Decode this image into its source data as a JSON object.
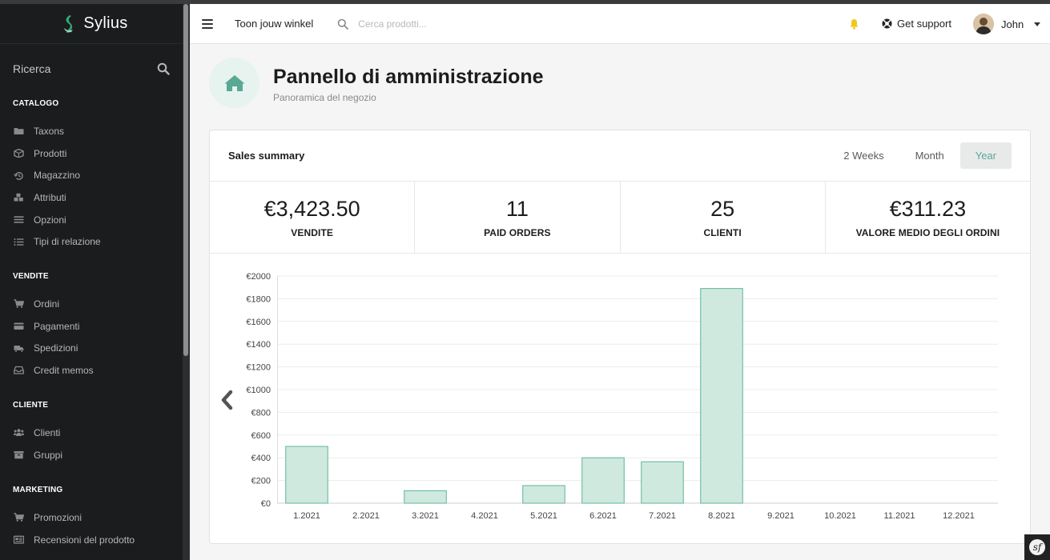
{
  "sidebar": {
    "brand": "Sylius",
    "search_label": "Ricerca",
    "sections": [
      {
        "title": "CATALOGO",
        "items": [
          {
            "label": "Taxons",
            "icon": "folder-icon"
          },
          {
            "label": "Prodotti",
            "icon": "cube-icon"
          },
          {
            "label": "Magazzino",
            "icon": "history-icon"
          },
          {
            "label": "Attributi",
            "icon": "cubes-icon"
          },
          {
            "label": "Opzioni",
            "icon": "list-icon"
          },
          {
            "label": "Tipi di relazione",
            "icon": "list-ul-icon"
          }
        ]
      },
      {
        "title": "VENDITE",
        "items": [
          {
            "label": "Ordini",
            "icon": "cart-icon"
          },
          {
            "label": "Pagamenti",
            "icon": "credit-card-icon"
          },
          {
            "label": "Spedizioni",
            "icon": "truck-icon"
          },
          {
            "label": "Credit memos",
            "icon": "inbox-icon"
          }
        ]
      },
      {
        "title": "CLIENTE",
        "items": [
          {
            "label": "Clienti",
            "icon": "users-icon"
          },
          {
            "label": "Gruppi",
            "icon": "archive-icon"
          }
        ]
      },
      {
        "title": "MARKETING",
        "items": [
          {
            "label": "Promozioni",
            "icon": "cart-icon"
          },
          {
            "label": "Recensioni del prodotto",
            "icon": "newspaper-icon"
          }
        ]
      }
    ]
  },
  "topbar": {
    "shop_link": "Toon jouw winkel",
    "search_placeholder": "Cerca prodotti...",
    "support": "Get support",
    "user_name": "John"
  },
  "header": {
    "title": "Pannello di amministrazione",
    "subtitle": "Panoramica del negozio"
  },
  "summary": {
    "title": "Sales summary",
    "periods": [
      "2 Weeks",
      "Month",
      "Year"
    ],
    "active_period": "Year",
    "stats": [
      {
        "value": "€3,423.50",
        "label": "VENDITE"
      },
      {
        "value": "11",
        "label": "PAID ORDERS"
      },
      {
        "value": "25",
        "label": "CLIENTI"
      },
      {
        "value": "€311.23",
        "label": "VALORE MEDIO DEGLI ORDINI"
      }
    ]
  },
  "chart_data": {
    "type": "bar",
    "categories": [
      "1.2021",
      "2.2021",
      "3.2021",
      "4.2021",
      "5.2021",
      "6.2021",
      "7.2021",
      "8.2021",
      "9.2021",
      "10.2021",
      "11.2021",
      "12.2021"
    ],
    "values": [
      500,
      0,
      110,
      0,
      155,
      400,
      365,
      1890,
      0,
      0,
      0,
      0
    ],
    "y_ticks": [
      "€0",
      "€200",
      "€400",
      "€600",
      "€800",
      "€1000",
      "€1200",
      "€1400",
      "€1600",
      "€1800",
      "€2000"
    ],
    "ylim": [
      0,
      2000
    ],
    "grid": true,
    "bar_fill": "#cfe9df",
    "bar_stroke": "#5fb597"
  },
  "colors": {
    "sidebar_bg": "#1b1c1d",
    "accent": "#5aa896",
    "bell": "#f2c61f"
  }
}
